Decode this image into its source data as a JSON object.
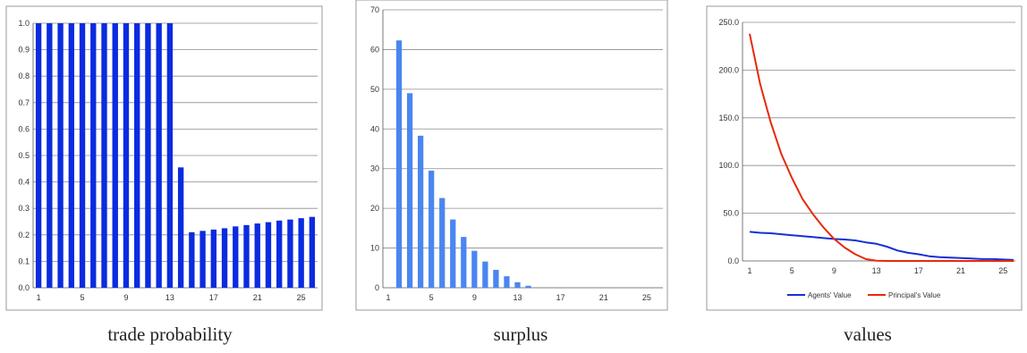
{
  "chart_data": [
    {
      "type": "bar",
      "caption": "trade probability",
      "x": [
        1,
        2,
        3,
        4,
        5,
        6,
        7,
        8,
        9,
        10,
        11,
        12,
        13,
        14,
        15,
        16,
        17,
        18,
        19,
        20,
        21,
        22,
        23,
        24,
        25,
        26
      ],
      "x_tick_labels": [
        "1",
        "5",
        "9",
        "13",
        "17",
        "21",
        "25"
      ],
      "values": [
        1.0,
        1.0,
        1.0,
        1.0,
        1.0,
        1.0,
        1.0,
        1.0,
        1.0,
        1.0,
        1.0,
        1.0,
        1.0,
        0.455,
        0.21,
        0.215,
        0.22,
        0.225,
        0.232,
        0.237,
        0.243,
        0.248,
        0.254,
        0.258,
        0.263,
        0.268
      ],
      "ylim": [
        0,
        1.0
      ],
      "y_ticks": [
        0,
        0.1,
        0.2,
        0.3,
        0.4,
        0.5,
        0.6,
        0.7,
        0.8,
        0.9,
        1.0
      ],
      "y_tick_labels": [
        "0.0",
        "0.1",
        "0.2",
        "0.3",
        "0.4",
        "0.5",
        "0.6",
        "0.7",
        "0.8",
        "0.9",
        "1.0"
      ],
      "color": "#0b2be0",
      "grid": true
    },
    {
      "type": "bar",
      "caption": "surplus",
      "x": [
        1,
        2,
        3,
        4,
        5,
        6,
        7,
        8,
        9,
        10,
        11,
        12,
        13,
        14,
        15,
        16,
        17,
        18,
        19,
        20,
        21,
        22,
        23,
        24,
        25,
        26
      ],
      "x_tick_labels": [
        "1",
        "5",
        "9",
        "13",
        "17",
        "21",
        "25"
      ],
      "values": [
        0,
        62.3,
        49.0,
        38.3,
        29.5,
        22.6,
        17.2,
        12.8,
        9.3,
        6.6,
        4.5,
        2.9,
        1.4,
        0.5,
        0,
        0,
        0,
        0,
        0,
        0,
        0,
        0,
        0,
        0,
        0,
        0
      ],
      "ylim": [
        0,
        70
      ],
      "y_ticks": [
        0,
        10,
        20,
        30,
        40,
        50,
        60,
        70
      ],
      "y_tick_labels": [
        "0",
        "10",
        "20",
        "30",
        "40",
        "50",
        "60",
        "70"
      ],
      "color": "#4a86f0",
      "grid": true
    },
    {
      "type": "line",
      "caption": "values",
      "x": [
        1,
        2,
        3,
        4,
        5,
        6,
        7,
        8,
        9,
        10,
        11,
        12,
        13,
        14,
        15,
        16,
        17,
        18,
        19,
        20,
        21,
        22,
        23,
        24,
        25,
        26
      ],
      "x_tick_labels": [
        "1",
        "5",
        "9",
        "13",
        "17",
        "21",
        "25"
      ],
      "series": [
        {
          "name": "Agents' Value",
          "color": "#1530d8",
          "values": [
            30.5,
            29.5,
            29.0,
            28.0,
            27.0,
            26.0,
            25.0,
            24.0,
            23.0,
            22.5,
            21.5,
            19.5,
            18.0,
            15.0,
            11.0,
            8.5,
            7.0,
            5.0,
            4.0,
            3.5,
            3.0,
            2.5,
            2.0,
            2.0,
            1.5,
            1.0
          ]
        },
        {
          "name": "Principal's Value",
          "color": "#e8280a",
          "values": [
            238,
            185,
            145,
            112,
            87,
            65,
            49,
            35,
            23,
            14,
            7,
            2,
            0.3,
            0,
            0,
            0,
            0,
            0,
            0,
            0,
            0,
            0,
            0,
            0,
            0,
            0
          ]
        }
      ],
      "ylim": [
        0,
        250
      ],
      "y_ticks": [
        0,
        50,
        100,
        150,
        200,
        250
      ],
      "y_tick_labels": [
        "0.0",
        "50.0",
        "100.0",
        "150.0",
        "200.0",
        "250.0"
      ],
      "legend": "bottom",
      "grid": true
    }
  ]
}
